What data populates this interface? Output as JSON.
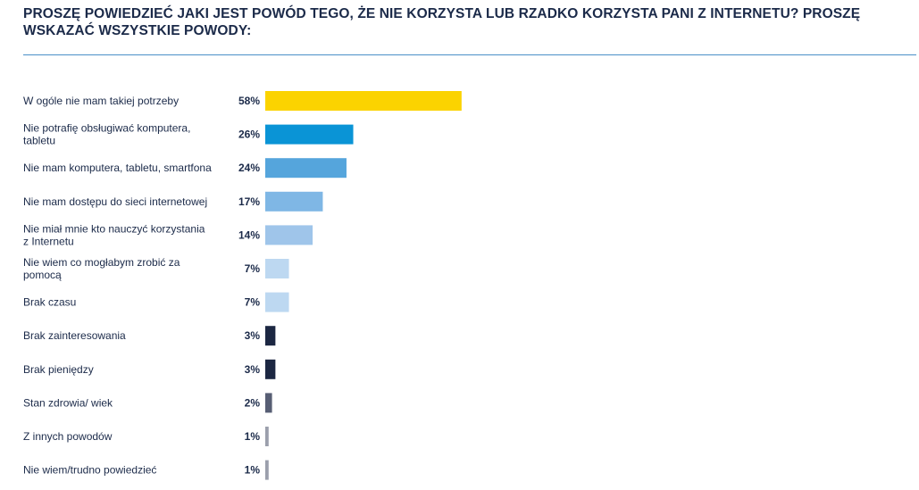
{
  "chart_data": {
    "type": "bar",
    "orientation": "horizontal",
    "title": "PROSZĘ POWIEDZIEĆ JAKI JEST POWÓD TEGO, ŻE NIE KORZYSTA LUB RZADKO KORZYSTA PANI Z INTERNETU? PROSZĘ WSKAZAĆ WSZYSTKIE POWODY:",
    "xlabel": "",
    "ylabel": "",
    "xlim": [
      0,
      100
    ],
    "grid": false,
    "unit": "%",
    "categories": [
      "W ogóle nie mam takiej potrzeby",
      "Nie potrafię obsługiwać komputera, tabletu",
      "Nie mam komputera, tabletu, smartfona",
      "Nie mam dostępu do sieci internetowej",
      "Nie miał mnie kto nauczyć korzystania z Internetu",
      "Nie wiem co mogłabym zrobić za pomocą",
      "Brak czasu",
      "Brak zainteresowania",
      "Brak pieniędzy",
      "Stan zdrowia/ wiek",
      "Z innych powodów",
      "Nie wiem/trudno powiedzieć"
    ],
    "label_lines": [
      [
        "W ogóle nie mam takiej potrzeby"
      ],
      [
        "Nie potrafię obsługiwać komputera,",
        "tabletu"
      ],
      [
        "Nie mam komputera, tabletu, smartfona"
      ],
      [
        "Nie mam dostępu do sieci internetowej"
      ],
      [
        "Nie miał mnie kto nauczyć korzystania",
        "z Internetu"
      ],
      [
        "Nie wiem co mogłabym zrobić za",
        "pomocą"
      ],
      [
        "Brak czasu"
      ],
      [
        "Brak zainteresowania"
      ],
      [
        "Brak pieniędzy"
      ],
      [
        "Stan zdrowia/ wiek"
      ],
      [
        "Z innych powodów"
      ],
      [
        "Nie wiem/trudno powiedzieć"
      ]
    ],
    "values": [
      58,
      26,
      24,
      17,
      14,
      7,
      7,
      3,
      3,
      2,
      1,
      1
    ],
    "value_labels": [
      "58%",
      "26%",
      "24%",
      "17%",
      "14%",
      "7%",
      "7%",
      "3%",
      "3%",
      "2%",
      "1%",
      "1%"
    ],
    "colors": [
      "#fbd300",
      "#0a94d6",
      "#55a5dc",
      "#7fb7e5",
      "#9fc5ea",
      "#bdd8f1",
      "#bdd8f1",
      "#1c2742",
      "#1c2742",
      "#575e74",
      "#9b9fac",
      "#9b9fac"
    ]
  }
}
